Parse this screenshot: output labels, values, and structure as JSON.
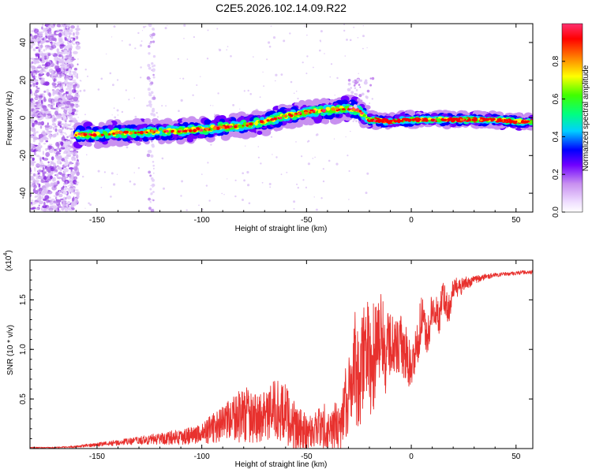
{
  "title": "C2E5.2026.102.14.09.R22",
  "colors": {
    "snr_line": "#e8312e",
    "axis": "#000000",
    "background": "#ffffff"
  },
  "chart_data": [
    {
      "type": "heatmap",
      "xlabel": "Height of straight line (km)",
      "ylabel": "Frequency (Hz)",
      "xlim": [
        -182,
        58
      ],
      "ylim": [
        -50,
        50
      ],
      "xticks": [
        -150,
        -100,
        -50,
        0,
        50
      ],
      "yticks": [
        -40,
        -20,
        0,
        20,
        40
      ],
      "ridge": {
        "x": [
          -160,
          -150,
          -140,
          -130,
          -120,
          -110,
          -100,
          -90,
          -80,
          -70,
          -60,
          -50,
          -40,
          -30,
          -25,
          -20,
          -10,
          0,
          10,
          20,
          30,
          40,
          50,
          58
        ],
        "freq": [
          -9,
          -9,
          -8,
          -8,
          -7,
          -7,
          -6,
          -5,
          -4,
          -2,
          1,
          3,
          4,
          5,
          4,
          -1,
          -2,
          -1,
          -1,
          -1,
          -1,
          -1,
          -2,
          -2
        ]
      },
      "colorbar": {
        "label": "Normalized spectral amplitude",
        "range": [
          0,
          1
        ],
        "ticks": [
          0.0,
          0.2,
          0.4,
          0.6,
          0.8
        ],
        "colors": [
          "#ffffff",
          "#c890f0",
          "#7000ff",
          "#0000ff",
          "#00d0ff",
          "#00ff80",
          "#40ff00",
          "#ffff00",
          "#ff8000",
          "#ff0000",
          "#ff3070"
        ]
      }
    },
    {
      "type": "line",
      "xlabel": "Height of straight line (km)",
      "ylabel": "SNR (10 * v/v)",
      "y_multiplier": "(x10",
      "y_multiplier_exp": "4",
      "y_multiplier_close": ")",
      "xlim": [
        -182,
        58
      ],
      "ylim": [
        0,
        1.9
      ],
      "xticks": [
        -150,
        -100,
        -50,
        0,
        50
      ],
      "yticks": [
        "0.5",
        "1.0",
        "1.5"
      ],
      "ytick_values": [
        0.5,
        1.0,
        1.5
      ],
      "series": [
        {
          "name": "SNR",
          "x": [
            -182,
            -170,
            -160,
            -150,
            -140,
            -130,
            -120,
            -110,
            -100,
            -95,
            -90,
            -85,
            -80,
            -75,
            -70,
            -65,
            -60,
            -55,
            -50,
            -45,
            -40,
            -35,
            -30,
            -27,
            -25,
            -22,
            -20,
            -18,
            -15,
            -12,
            -10,
            -8,
            -5,
            -2,
            0,
            3,
            5,
            8,
            10,
            13,
            15,
            18,
            20,
            25,
            30,
            35,
            40,
            45,
            50,
            55,
            58
          ],
          "values": [
            0.01,
            0.01,
            0.02,
            0.04,
            0.06,
            0.08,
            0.1,
            0.12,
            0.15,
            0.2,
            0.25,
            0.3,
            0.35,
            0.3,
            0.32,
            0.4,
            0.35,
            0.2,
            0.15,
            0.2,
            0.25,
            0.2,
            0.55,
            0.8,
            0.6,
            1.1,
            1.0,
            0.9,
            1.2,
            0.9,
            1.1,
            1.0,
            1.05,
            0.9,
            0.8,
            1.1,
            1.3,
            1.15,
            1.4,
            1.3,
            1.55,
            1.4,
            1.6,
            1.65,
            1.7,
            1.73,
            1.75,
            1.76,
            1.77,
            1.78,
            1.78
          ],
          "amplitude": [
            0.005,
            0.005,
            0.01,
            0.02,
            0.03,
            0.04,
            0.06,
            0.08,
            0.1,
            0.15,
            0.18,
            0.22,
            0.3,
            0.25,
            0.25,
            0.3,
            0.3,
            0.25,
            0.2,
            0.2,
            0.25,
            0.25,
            0.4,
            0.6,
            0.5,
            0.5,
            0.8,
            0.6,
            0.5,
            0.4,
            0.35,
            0.3,
            0.3,
            0.3,
            0.25,
            0.25,
            0.25,
            0.2,
            0.2,
            0.2,
            0.15,
            0.15,
            0.12,
            0.08,
            0.04,
            0.03,
            0.02,
            0.02,
            0.02,
            0.02,
            0.02
          ]
        }
      ]
    }
  ]
}
